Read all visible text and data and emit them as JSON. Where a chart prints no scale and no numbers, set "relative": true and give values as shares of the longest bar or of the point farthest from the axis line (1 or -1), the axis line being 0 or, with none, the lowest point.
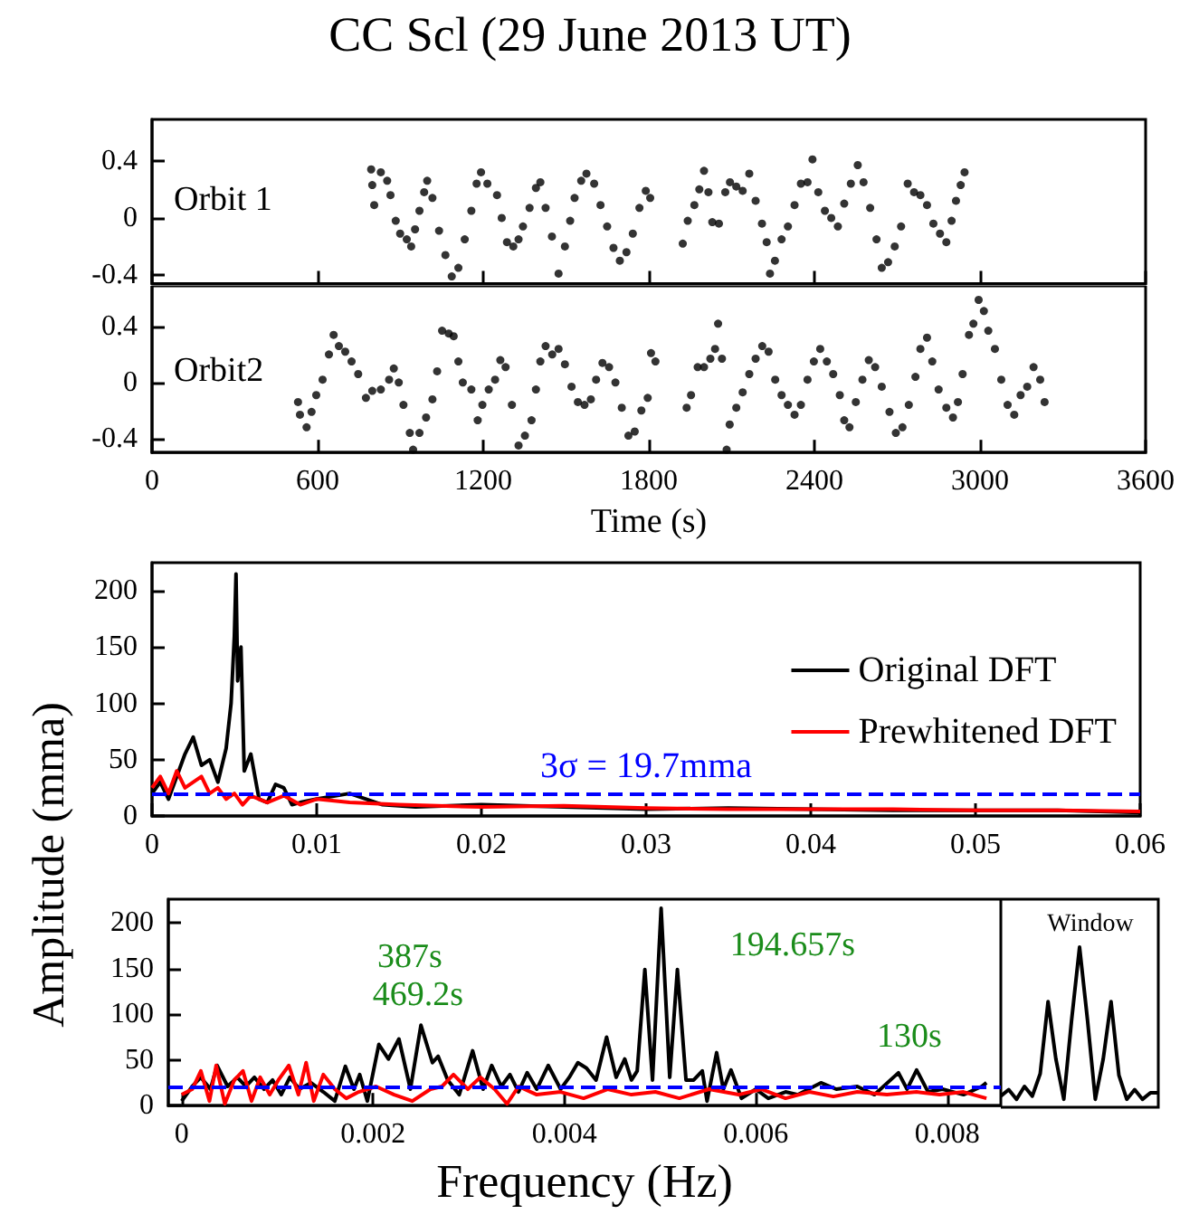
{
  "chart_data": [
    {
      "type": "scatter",
      "title": "CC Scl (29 June 2013 UT)",
      "annotations": [
        "Orbit 1"
      ],
      "marker": "circle",
      "tick_labels": "y",
      "xlim": [
        0,
        3600
      ],
      "xticks": [
        0,
        600,
        1200,
        1800,
        2400,
        3000,
        3600
      ],
      "ylim": [
        -0.46,
        0.69
      ],
      "yticks": [
        -0.4,
        0,
        0.4
      ],
      "series": [
        {
          "color": "#000000",
          "x": [
            794,
            798,
            805,
            829,
            852,
            864,
            883,
            899,
            923,
            939,
            953,
            969,
            986,
            997,
            1016,
            1040,
            1063,
            1086,
            1110,
            1133,
            1157,
            1176,
            1192,
            1215,
            1250,
            1267,
            1286,
            1309,
            1328,
            1344,
            1368,
            1391,
            1407,
            1426,
            1449,
            1473,
            1496,
            1515,
            1531,
            1555,
            1574,
            1602,
            1625,
            1649,
            1672,
            1695,
            1719,
            1742,
            1766,
            1789,
            1805,
            1923,
            1941,
            1965,
            1983,
            2000,
            2016,
            2030,
            2054,
            2077,
            2094,
            2117,
            2140,
            2164,
            2187,
            2210,
            2227,
            2239,
            2257,
            2281,
            2304,
            2328,
            2351,
            2375,
            2393,
            2414,
            2438,
            2461,
            2485,
            2508,
            2532,
            2557,
            2578,
            2602,
            2625,
            2644,
            2667,
            2691,
            2714,
            2738,
            2761,
            2784,
            2808,
            2831,
            2855,
            2878,
            2897,
            2913,
            2930,
            2944
          ],
          "values": [
            0.34,
            0.23,
            0.09,
            0.32,
            0.26,
            0.16,
            -0.02,
            -0.11,
            -0.15,
            -0.2,
            -0.08,
            0.05,
            0.18,
            0.26,
            0.14,
            -0.09,
            -0.26,
            -0.41,
            -0.35,
            -0.15,
            0.05,
            0.24,
            0.32,
            0.24,
            0.16,
            0,
            -0.17,
            -0.2,
            -0.15,
            -0.06,
            0.07,
            0.21,
            0.25,
            0.07,
            -0.13,
            -0.39,
            -0.2,
            -0.02,
            0.14,
            0.26,
            0.31,
            0.24,
            0.09,
            -0.06,
            -0.21,
            -0.3,
            -0.24,
            -0.11,
            0.07,
            0.19,
            0.14,
            -0.18,
            -0.02,
            0.09,
            0.2,
            0.33,
            0.18,
            -0.03,
            -0.04,
            0.18,
            0.25,
            0.22,
            0.19,
            0.31,
            0.12,
            -0.04,
            -0.17,
            -0.39,
            -0.3,
            -0.15,
            -0.06,
            0.09,
            0.24,
            0.25,
            0.41,
            0.18,
            0.05,
            0,
            -0.06,
            0.1,
            0.24,
            0.37,
            0.25,
            0.07,
            -0.15,
            -0.35,
            -0.31,
            -0.2,
            -0.06,
            0.24,
            0.18,
            0.16,
            0.09,
            -0.04,
            -0.11,
            -0.17,
            -0.02,
            0.12,
            0.23,
            0.32
          ]
        }
      ]
    },
    {
      "type": "scatter",
      "xlabel": "Time (s)",
      "annotations": [
        "Orbit2"
      ],
      "marker": "circle",
      "xlim": [
        0,
        3600
      ],
      "xticks": [
        0,
        600,
        1200,
        1800,
        2400,
        3000,
        3600
      ],
      "ylim": [
        -0.5,
        0.69
      ],
      "yticks": [
        -0.4,
        0,
        0.4
      ],
      "series": [
        {
          "color": "#000000",
          "x": [
            529,
            536,
            560,
            578,
            595,
            618,
            641,
            658,
            677,
            700,
            723,
            747,
            775,
            798,
            829,
            859,
            876,
            894,
            911,
            934,
            946,
            969,
            993,
            1016,
            1033,
            1051,
            1075,
            1093,
            1110,
            1126,
            1157,
            1180,
            1197,
            1220,
            1243,
            1262,
            1281,
            1304,
            1328,
            1351,
            1375,
            1391,
            1407,
            1426,
            1450,
            1473,
            1496,
            1520,
            1543,
            1567,
            1590,
            1609,
            1632,
            1656,
            1679,
            1702,
            1726,
            1749,
            1773,
            1796,
            1808,
            1824,
            1937,
            1953,
            1977,
            2000,
            2023,
            2040,
            2051,
            2065,
            2082,
            2093,
            2117,
            2140,
            2164,
            2187,
            2211,
            2234,
            2258,
            2281,
            2304,
            2328,
            2351,
            2375,
            2398,
            2421,
            2445,
            2468,
            2492,
            2508,
            2527,
            2550,
            2574,
            2597,
            2620,
            2644,
            2672,
            2695,
            2719,
            2742,
            2766,
            2784,
            2808,
            2827,
            2850,
            2878,
            2902,
            2920,
            2937,
            2960,
            2976,
            2995,
            3014,
            3030,
            3054,
            3077,
            3100,
            3124,
            3147,
            3171,
            3194,
            3218,
            3234
          ],
          "values": [
            -0.14,
            -0.23,
            -0.32,
            -0.21,
            -0.09,
            0.02,
            0.2,
            0.34,
            0.26,
            0.22,
            0.15,
            0.06,
            -0.11,
            -0.06,
            -0.05,
            0.02,
            0.1,
            0,
            -0.16,
            -0.36,
            -0.48,
            -0.36,
            -0.25,
            -0.12,
            0.08,
            0.37,
            0.35,
            0.33,
            0.15,
            0,
            -0.05,
            -0.27,
            -0.16,
            -0.05,
            0.02,
            0.16,
            0.11,
            -0.16,
            -0.45,
            -0.38,
            -0.27,
            -0.05,
            0.15,
            0.26,
            0.2,
            0.24,
            0.13,
            -0.03,
            -0.14,
            -0.16,
            -0.12,
            0.02,
            0.14,
            0.11,
            0,
            -0.18,
            -0.38,
            -0.35,
            -0.2,
            -0.11,
            0.21,
            0.15,
            -0.18,
            -0.09,
            0.11,
            0.11,
            0.17,
            0.24,
            0.42,
            0.17,
            -0.48,
            -0.3,
            -0.18,
            -0.07,
            0.06,
            0.17,
            0.26,
            0.22,
            0.02,
            -0.09,
            -0.16,
            -0.23,
            -0.16,
            0.02,
            0.15,
            0.24,
            0.15,
            0.06,
            -0.09,
            -0.27,
            -0.32,
            -0.14,
            0.02,
            0.16,
            0.11,
            -0.03,
            -0.21,
            -0.36,
            -0.32,
            -0.16,
            0.04,
            0.24,
            0.32,
            0.15,
            -0.05,
            -0.18,
            -0.25,
            -0.14,
            0.06,
            0.34,
            0.42,
            0.59,
            0.51,
            0.37,
            0.24,
            0.02,
            -0.16,
            -0.23,
            -0.09,
            -0.03,
            0.11,
            0.02,
            -0.14
          ]
        }
      ]
    },
    {
      "type": "line",
      "ylabel": "Amplitude (mma)",
      "marker": "none",
      "legend": "right",
      "xlim": [
        0,
        0.06
      ],
      "xticks": [
        0,
        0.01,
        0.02,
        0.03,
        0.04,
        0.05,
        0.06
      ],
      "ylim": [
        0,
        225
      ],
      "yticks": [
        0,
        50,
        100,
        150,
        200
      ],
      "ref_lines": [
        {
          "axis": "y",
          "value": 19.7,
          "label": "3σ = 19.7mma",
          "color": "#0000ff",
          "line_style": "dashed"
        }
      ],
      "series": [
        {
          "name": "Original DFT",
          "color": "#000000",
          "x": [
            0,
            0.0005,
            0.001,
            0.0015,
            0.002,
            0.0025,
            0.003,
            0.0035,
            0.004,
            0.0045,
            0.0048,
            0.005,
            0.0051,
            0.0052,
            0.0054,
            0.0056,
            0.006,
            0.0065,
            0.007,
            0.0075,
            0.008,
            0.0085,
            0.009,
            0.01,
            0.012,
            0.014,
            0.016,
            0.02,
            0.025,
            0.03,
            0.035,
            0.04,
            0.045,
            0.05,
            0.055,
            0.06
          ],
          "values": [
            20,
            30,
            15,
            35,
            55,
            70,
            45,
            50,
            30,
            60,
            100,
            160,
            215,
            120,
            150,
            40,
            55,
            15,
            12,
            28,
            25,
            10,
            12,
            15,
            20,
            10,
            8,
            10,
            8,
            6,
            7,
            6,
            5,
            5,
            5,
            3
          ]
        },
        {
          "name": "Prewhitened DFT",
          "color": "#ff0000",
          "x": [
            0,
            0.0005,
            0.001,
            0.0015,
            0.002,
            0.0025,
            0.003,
            0.0035,
            0.004,
            0.0045,
            0.005,
            0.0055,
            0.006,
            0.007,
            0.008,
            0.009,
            0.01,
            0.012,
            0.015,
            0.02,
            0.025,
            0.03,
            0.035,
            0.04,
            0.045,
            0.05,
            0.055,
            0.06
          ],
          "values": [
            25,
            35,
            20,
            40,
            25,
            30,
            35,
            20,
            25,
            15,
            20,
            10,
            18,
            12,
            18,
            10,
            15,
            12,
            10,
            8,
            9,
            7,
            6,
            6,
            6,
            5,
            5,
            4
          ]
        }
      ]
    },
    {
      "type": "line",
      "xlabel": "Frequency (Hz)",
      "marker": "none",
      "xlim": [
        -0.00014,
        0.00856
      ],
      "xticks": [
        0,
        0.002,
        0.004,
        0.006,
        0.008
      ],
      "ylim": [
        0,
        226
      ],
      "yticks": [
        0,
        50,
        100,
        150,
        200
      ],
      "ref_lines": [
        {
          "axis": "y",
          "value": 19.7,
          "color": "#0000ff",
          "line_style": "dashed"
        }
      ],
      "annotations": [
        "387s",
        "469.2s",
        "194.657s",
        "130s"
      ],
      "series": [
        {
          "color": "#000000",
          "x": [
            0,
            0.00011,
            0.0002,
            0.0003,
            0.00037,
            0.00048,
            0.00058,
            0.00067,
            0.00076,
            0.00086,
            0.00095,
            0.00104,
            0.00113,
            0.00123,
            0.00135,
            0.00148,
            0.0016,
            0.00171,
            0.0018,
            0.00186,
            0.00194,
            0.00206,
            0.00216,
            0.00227,
            0.00239,
            0.0025,
            0.00262,
            0.00268,
            0.00278,
            0.0029,
            0.00304,
            0.00315,
            0.00324,
            0.00334,
            0.00343,
            0.00352,
            0.00361,
            0.00371,
            0.00383,
            0.00396,
            0.00405,
            0.00414,
            0.00423,
            0.00433,
            0.00444,
            0.00454,
            0.00463,
            0.0047,
            0.00476,
            0.00484,
            0.00492,
            0.00501,
            0.0051,
            0.00518,
            0.00527,
            0.00535,
            0.00544,
            0.00549,
            0.00559,
            0.00566,
            0.00574,
            0.00585,
            0.006,
            0.00613,
            0.00631,
            0.00644,
            0.00668,
            0.00684,
            0.00706,
            0.00724,
            0.00749,
            0.00758,
            0.00768,
            0.0078,
            0.00795,
            0.00817,
            0.00836,
            0.00841
          ],
          "values": [
            5,
            21,
            31,
            18,
            44,
            21,
            31,
            21,
            31,
            18,
            28,
            12,
            31,
            18,
            25,
            15,
            5,
            43,
            18,
            34,
            5,
            67,
            51,
            73,
            18,
            88,
            47,
            54,
            28,
            12,
            60,
            18,
            44,
            21,
            34,
            15,
            36,
            18,
            44,
            18,
            31,
            47,
            41,
            28,
            75,
            31,
            51,
            28,
            38,
            149,
            28,
            216,
            31,
            149,
            28,
            28,
            38,
            5,
            58,
            18,
            39,
            8,
            18,
            8,
            15,
            12,
            25,
            18,
            21,
            12,
            36,
            18,
            39,
            15,
            18,
            12,
            21,
            25
          ]
        },
        {
          "color": "#ff0000",
          "x": [
            0,
            0.00011,
            0.0002,
            0.00029,
            0.00036,
            0.00045,
            0.00055,
            0.00064,
            0.00073,
            0.00082,
            0.00092,
            0.00101,
            0.00112,
            0.00122,
            0.0013,
            0.00138,
            0.00148,
            0.0016,
            0.00172,
            0.00185,
            0.00203,
            0.00222,
            0.00241,
            0.0026,
            0.00272,
            0.00284,
            0.00299,
            0.00312,
            0.00327,
            0.0034,
            0.00352,
            0.00371,
            0.00396,
            0.0042,
            0.00445,
            0.0047,
            0.00495,
            0.0052,
            0.00551,
            0.00582,
            0.00606,
            0.00631,
            0.00656,
            0.00681,
            0.00706,
            0.00737,
            0.00768,
            0.00792,
            0.00817,
            0.00841
          ],
          "values": [
            12,
            18,
            38,
            5,
            44,
            2,
            28,
            38,
            5,
            31,
            12,
            28,
            44,
            12,
            47,
            5,
            34,
            18,
            8,
            15,
            21,
            12,
            5,
            18,
            21,
            34,
            18,
            31,
            18,
            2,
            21,
            12,
            15,
            8,
            18,
            12,
            15,
            8,
            18,
            12,
            18,
            8,
            15,
            10,
            15,
            12,
            15,
            12,
            15,
            8
          ]
        }
      ]
    },
    {
      "type": "line",
      "title": "Window",
      "relative": true,
      "tick_labels": false,
      "marker": "none",
      "categories": [
        null,
        null,
        null,
        null,
        null,
        null,
        null,
        null,
        null,
        null,
        null,
        null,
        null,
        null,
        null,
        null,
        null,
        null,
        null,
        null,
        null
      ],
      "series": [
        {
          "color": "#000000",
          "values": [
            0.07,
            0.11,
            0.05,
            0.13,
            0.07,
            0.21,
            0.66,
            0.3,
            0.05,
            0.55,
            1,
            0.55,
            0.05,
            0.3,
            0.66,
            0.2,
            0.05,
            0.11,
            0.05,
            0.09,
            0.09
          ]
        }
      ]
    }
  ]
}
